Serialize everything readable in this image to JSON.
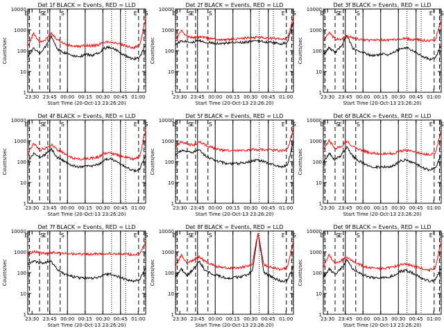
{
  "figure": {
    "xlabel": "Start Time (20-Oct-13 23:26:20)",
    "ylabel": "Counts/sec",
    "x_tick_labels": [
      "23:30",
      "23:45",
      "00:00",
      "00:15",
      "00:30",
      "00:45",
      "01:00"
    ],
    "y_tick_labels": [
      "1",
      "10",
      "100",
      "1000",
      "10000"
    ],
    "event_markers": [
      {
        "label": "E",
        "style": "dashed"
      },
      {
        "label": "S",
        "style": "dashed"
      },
      {
        "label": "E",
        "style": "dashed"
      },
      {
        "label": "S",
        "style": "dashed"
      },
      {
        "label": "E",
        "style": "dashed"
      },
      {
        "label": "S",
        "style": "dashed"
      }
    ],
    "colors": {
      "events": "#000000",
      "lld": "#ff0000",
      "axis": "#000000",
      "background": "#ffffff"
    }
  },
  "chart_data": [
    {
      "type": "line",
      "title": "Det 1f BLACK = Events, RED = LLD",
      "yscale": "log",
      "ylim": [
        1,
        10000
      ],
      "x_minutes": [
        0,
        5,
        10,
        15,
        20,
        25,
        30,
        35,
        40,
        45,
        50,
        55,
        60,
        65,
        70,
        75,
        80,
        85,
        90,
        95,
        100
      ],
      "series": [
        {
          "name": "Events",
          "color": "#000000",
          "values": [
            55,
            130,
            70,
            150,
            500,
            120,
            85,
            70,
            55,
            55,
            65,
            60,
            80,
            130,
            150,
            110,
            70,
            50,
            40,
            50,
            200
          ]
        },
        {
          "name": "LLD",
          "color": "#ff0000",
          "values": [
            150,
            700,
            250,
            320,
            700,
            350,
            230,
            180,
            160,
            160,
            180,
            170,
            190,
            260,
            270,
            230,
            190,
            160,
            140,
            180,
            3500
          ]
        }
      ]
    },
    {
      "type": "line",
      "title": "Det 2f BLACK = Events, RED = LLD",
      "yscale": "log",
      "ylim": [
        1,
        10000
      ],
      "x_minutes": [
        0,
        5,
        10,
        15,
        20,
        25,
        30,
        35,
        40,
        45,
        50,
        55,
        60,
        65,
        70,
        75,
        80,
        85,
        90,
        95,
        100
      ],
      "series": [
        {
          "name": "Events",
          "color": "#000000",
          "values": [
            200,
            300,
            280,
            250,
            300,
            250,
            240,
            230,
            220,
            230,
            240,
            250,
            260,
            280,
            290,
            270,
            250,
            230,
            210,
            250,
            2500
          ]
        },
        {
          "name": "LLD",
          "color": "#ff0000",
          "values": [
            350,
            900,
            500,
            420,
            450,
            420,
            380,
            350,
            330,
            340,
            360,
            380,
            400,
            420,
            450,
            430,
            400,
            380,
            360,
            400,
            4000
          ]
        }
      ]
    },
    {
      "type": "line",
      "title": "Det 3f BLACK = Events, RED = LLD",
      "yscale": "log",
      "ylim": [
        1,
        10000
      ],
      "x_minutes": [
        0,
        5,
        10,
        15,
        20,
        25,
        30,
        35,
        40,
        45,
        50,
        55,
        60,
        65,
        70,
        75,
        80,
        85,
        90,
        95,
        100
      ],
      "series": [
        {
          "name": "Events",
          "color": "#000000",
          "values": [
            60,
            140,
            80,
            160,
            550,
            130,
            90,
            75,
            60,
            60,
            70,
            65,
            85,
            120,
            140,
            110,
            70,
            50,
            38,
            45,
            180
          ]
        },
        {
          "name": "LLD",
          "color": "#ff0000",
          "values": [
            300,
            700,
            350,
            360,
            500,
            400,
            350,
            330,
            320,
            320,
            330,
            330,
            340,
            360,
            370,
            350,
            330,
            310,
            300,
            320,
            3000
          ]
        }
      ]
    },
    {
      "type": "line",
      "title": "Det 4f BLACK = Events, RED = LLD",
      "yscale": "log",
      "ylim": [
        1,
        10000
      ],
      "x_minutes": [
        0,
        5,
        10,
        15,
        20,
        25,
        30,
        35,
        40,
        45,
        50,
        55,
        60,
        65,
        70,
        75,
        80,
        85,
        90,
        95,
        100
      ],
      "series": [
        {
          "name": "Events",
          "color": "#000000",
          "values": [
            90,
            250,
            150,
            230,
            400,
            160,
            110,
            80,
            60,
            55,
            60,
            60,
            75,
            120,
            140,
            100,
            70,
            50,
            35,
            45,
            200
          ]
        },
        {
          "name": "LLD",
          "color": "#ff0000",
          "values": [
            220,
            800,
            350,
            450,
            650,
            380,
            260,
            180,
            140,
            130,
            140,
            150,
            170,
            250,
            260,
            220,
            180,
            150,
            130,
            170,
            3500
          ]
        }
      ]
    },
    {
      "type": "line",
      "title": "Det 5f BLACK = Events, RED = LLD",
      "yscale": "log",
      "ylim": [
        1,
        10000
      ],
      "x_minutes": [
        0,
        5,
        10,
        15,
        20,
        25,
        30,
        35,
        40,
        45,
        50,
        55,
        60,
        65,
        70,
        75,
        80,
        85,
        90,
        95,
        100
      ],
      "series": [
        {
          "name": "Events",
          "color": "#000000",
          "values": [
            200,
            350,
            300,
            280,
            350,
            200,
            140,
            110,
            90,
            80,
            80,
            85,
            90,
            110,
            120,
            100,
            80,
            65,
            55,
            70,
            1000
          ]
        },
        {
          "name": "LLD",
          "color": "#ff0000",
          "values": [
            500,
            900,
            700,
            600,
            900,
            650,
            500,
            400,
            350,
            330,
            330,
            340,
            350,
            380,
            380,
            370,
            360,
            350,
            340,
            380,
            4000
          ]
        }
      ]
    },
    {
      "type": "line",
      "title": "Det 6f BLACK = Events, RED = LLD",
      "yscale": "log",
      "ylim": [
        1,
        10000
      ],
      "x_minutes": [
        0,
        5,
        10,
        15,
        20,
        25,
        30,
        35,
        40,
        45,
        50,
        55,
        60,
        65,
        70,
        75,
        80,
        85,
        90,
        95,
        100
      ],
      "series": [
        {
          "name": "Events",
          "color": "#000000",
          "values": [
            90,
            250,
            120,
            200,
            500,
            180,
            110,
            80,
            60,
            55,
            55,
            55,
            65,
            110,
            120,
            95,
            70,
            50,
            40,
            50,
            200
          ]
        },
        {
          "name": "LLD",
          "color": "#ff0000",
          "values": [
            350,
            1000,
            450,
            500,
            1000,
            550,
            400,
            320,
            260,
            240,
            240,
            240,
            250,
            330,
            350,
            310,
            270,
            240,
            220,
            260,
            3000
          ]
        }
      ]
    },
    {
      "type": "line",
      "title": "Det 7f BLACK = Events, RED = LLD",
      "yscale": "log",
      "ylim": [
        1,
        10000
      ],
      "x_minutes": [
        0,
        5,
        10,
        15,
        20,
        25,
        30,
        35,
        40,
        45,
        50,
        55,
        60,
        65,
        70,
        75,
        80,
        85,
        90,
        95,
        100
      ],
      "series": [
        {
          "name": "Events",
          "color": "#000000",
          "values": [
            250,
            350,
            300,
            300,
            350,
            140,
            90,
            70,
            60,
            55,
            55,
            55,
            60,
            80,
            85,
            70,
            55,
            45,
            38,
            45,
            180
          ]
        },
        {
          "name": "LLD",
          "color": "#ff0000",
          "values": [
            800,
            1000,
            900,
            850,
            950,
            900,
            850,
            800,
            780,
            770,
            770,
            780,
            790,
            810,
            820,
            800,
            780,
            760,
            750,
            800,
            3000
          ]
        }
      ]
    },
    {
      "type": "line",
      "title": "Det 8f BLACK = Events, RED = LLD",
      "yscale": "log",
      "ylim": [
        1,
        10000
      ],
      "x_minutes": [
        0,
        5,
        10,
        15,
        20,
        25,
        30,
        35,
        40,
        45,
        50,
        55,
        60,
        65,
        70,
        75,
        80,
        85,
        90,
        95,
        100
      ],
      "series": [
        {
          "name": "Events",
          "color": "#000000",
          "values": [
            60,
            150,
            70,
            150,
            350,
            130,
            90,
            75,
            60,
            55,
            60,
            60,
            75,
            110,
            8000,
            100,
            70,
            50,
            38,
            45,
            200
          ]
        },
        {
          "name": "LLD",
          "color": "#ff0000",
          "values": [
            200,
            700,
            280,
            400,
            600,
            350,
            250,
            200,
            180,
            170,
            170,
            180,
            200,
            250,
            8000,
            230,
            190,
            160,
            140,
            180,
            3000
          ]
        }
      ]
    },
    {
      "type": "line",
      "title": "Det 9f BLACK = Events, RED = LLD",
      "yscale": "log",
      "ylim": [
        1,
        10000
      ],
      "x_minutes": [
        0,
        5,
        10,
        15,
        20,
        25,
        30,
        35,
        40,
        45,
        50,
        55,
        60,
        65,
        70,
        75,
        80,
        85,
        90,
        95,
        100
      ],
      "series": [
        {
          "name": "Events",
          "color": "#000000",
          "values": [
            60,
            150,
            80,
            160,
            400,
            150,
            95,
            75,
            60,
            55,
            60,
            60,
            75,
            110,
            130,
            100,
            70,
            50,
            38,
            45,
            180
          ]
        },
        {
          "name": "LLD",
          "color": "#ff0000",
          "values": [
            180,
            700,
            280,
            380,
            550,
            350,
            260,
            200,
            170,
            160,
            160,
            170,
            190,
            240,
            260,
            220,
            180,
            150,
            130,
            170,
            3000
          ]
        }
      ]
    }
  ]
}
